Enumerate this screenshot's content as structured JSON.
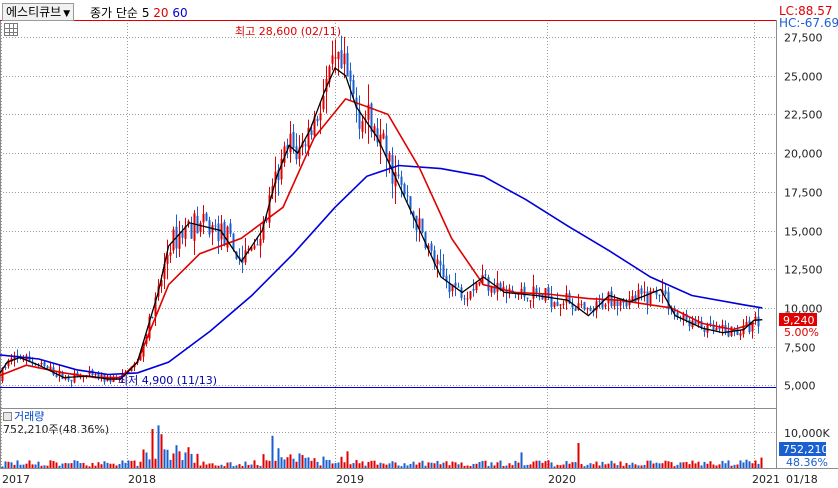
{
  "header": {
    "stock_name": "에스티큐브",
    "ma_label": "종가 단순",
    "ma_periods": [
      "5",
      "20",
      "60"
    ],
    "ma_colors": [
      "#000000",
      "#e00000",
      "#0000dd"
    ],
    "lc_label": "LC:88.57",
    "hc_label": "HC:-67.69"
  },
  "annotations": {
    "high": "최고 28,600 (02/11)",
    "low": "최저 4,900 (11/13)"
  },
  "price_tags": {
    "current": "9,240",
    "pct": "5.00%"
  },
  "volume_panel": {
    "title": "거래량",
    "value_text": "752,210주(48.36%)",
    "tick_label": "10,000K",
    "current": "752,210",
    "pct": "48.36%"
  },
  "x_axis": {
    "labels": [
      "2017",
      "2018",
      "2019",
      "2020",
      "2021",
      "01/18"
    ]
  },
  "colors": {
    "up": "#e00000",
    "down": "#1a5fd0",
    "ma5": "#000000",
    "ma20": "#e00000",
    "ma60": "#0000dd",
    "grid": "#9a9a9a",
    "current_tag": "#e00000",
    "volume_tag": "#1a5fd0"
  },
  "chart_data": {
    "type": "candlestick",
    "price_axis": {
      "ticks": [
        "27,500",
        "25,000",
        "22,500",
        "20,000",
        "17,500",
        "15,000",
        "12,500",
        "10,000",
        "7,500",
        "5,000"
      ],
      "tick_values": [
        27500,
        25000,
        22500,
        20000,
        17500,
        15000,
        12500,
        10000,
        7500,
        5000
      ],
      "range": [
        3600,
        28600
      ]
    },
    "high_line": 28600,
    "low_line": 4900,
    "current_price": 9240,
    "ma60": [
      [
        2016.95,
        7000
      ],
      [
        2017.3,
        6700
      ],
      [
        2017.6,
        6000
      ],
      [
        2017.85,
        5700
      ],
      [
        2018.05,
        5800
      ],
      [
        2018.2,
        6500
      ],
      [
        2018.4,
        8500
      ],
      [
        2018.6,
        10800
      ],
      [
        2018.8,
        13500
      ],
      [
        2019.0,
        16500
      ],
      [
        2019.15,
        18500
      ],
      [
        2019.3,
        19200
      ],
      [
        2019.5,
        19000
      ],
      [
        2019.7,
        18500
      ],
      [
        2019.9,
        17000
      ],
      [
        2020.1,
        15300
      ],
      [
        2020.3,
        13700
      ],
      [
        2020.5,
        12000
      ],
      [
        2020.7,
        10800
      ],
      [
        2020.95,
        10200
      ],
      [
        2021.04,
        10000
      ]
    ],
    "ma20": [
      [
        2016.95,
        5500
      ],
      [
        2017.2,
        6300
      ],
      [
        2017.5,
        5800
      ],
      [
        2017.75,
        5500
      ],
      [
        2017.95,
        5500
      ],
      [
        2018.05,
        6500
      ],
      [
        2018.2,
        11500
      ],
      [
        2018.35,
        13500
      ],
      [
        2018.55,
        14500
      ],
      [
        2018.75,
        16500
      ],
      [
        2018.9,
        21000
      ],
      [
        2019.05,
        23500
      ],
      [
        2019.25,
        22500
      ],
      [
        2019.4,
        19000
      ],
      [
        2019.55,
        14500
      ],
      [
        2019.7,
        11500
      ],
      [
        2019.85,
        11000
      ],
      [
        2020.0,
        10900
      ],
      [
        2020.2,
        10600
      ],
      [
        2020.35,
        10500
      ],
      [
        2020.6,
        10000
      ],
      [
        2020.75,
        9000
      ],
      [
        2020.9,
        8600
      ],
      [
        2021.0,
        9000
      ]
    ],
    "ma5": [
      [
        2016.95,
        5300
      ],
      [
        2017.05,
        6500
      ],
      [
        2017.15,
        6800
      ],
      [
        2017.3,
        6300
      ],
      [
        2017.5,
        5500
      ],
      [
        2017.7,
        5600
      ],
      [
        2017.85,
        5400
      ],
      [
        2017.95,
        5400
      ],
      [
        2018.05,
        6500
      ],
      [
        2018.15,
        11000
      ],
      [
        2018.2,
        14000
      ],
      [
        2018.3,
        15500
      ],
      [
        2018.45,
        15000
      ],
      [
        2018.55,
        13000
      ],
      [
        2018.65,
        15000
      ],
      [
        2018.72,
        18500
      ],
      [
        2018.78,
        20500
      ],
      [
        2018.82,
        20000
      ],
      [
        2018.88,
        21500
      ],
      [
        2018.95,
        24000
      ],
      [
        2019.0,
        25500
      ],
      [
        2019.05,
        25000
      ],
      [
        2019.1,
        23000
      ],
      [
        2019.2,
        21000
      ],
      [
        2019.3,
        18000
      ],
      [
        2019.4,
        15000
      ],
      [
        2019.5,
        12000
      ],
      [
        2019.6,
        11000
      ],
      [
        2019.7,
        12000
      ],
      [
        2019.8,
        11000
      ],
      [
        2019.95,
        10800
      ],
      [
        2020.1,
        10500
      ],
      [
        2020.2,
        9500
      ],
      [
        2020.3,
        10800
      ],
      [
        2020.4,
        10400
      ],
      [
        2020.55,
        11200
      ],
      [
        2020.62,
        9500
      ],
      [
        2020.75,
        8700
      ],
      [
        2020.85,
        8400
      ],
      [
        2020.95,
        8600
      ],
      [
        2021.0,
        9200
      ],
      [
        2021.04,
        9240
      ]
    ],
    "volume_axis": {
      "ticks": [
        "10,000K"
      ],
      "tick_values": [
        10000
      ]
    },
    "volume_current": 752210
  }
}
